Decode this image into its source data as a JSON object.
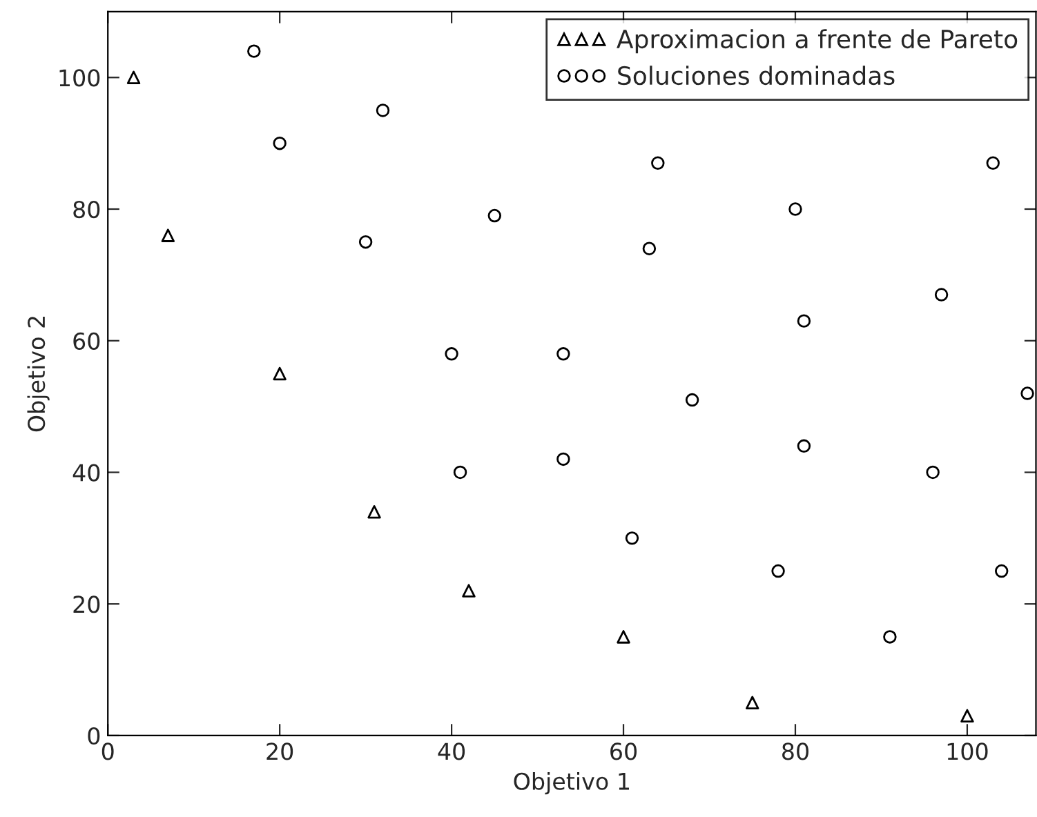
{
  "chart_data": {
    "type": "scatter",
    "xlabel": "Objetivo 1",
    "ylabel": "Objetivo 2",
    "xlim": [
      0,
      108
    ],
    "ylim": [
      0,
      110
    ],
    "xticks": [
      0,
      20,
      40,
      60,
      80,
      100
    ],
    "yticks": [
      0,
      20,
      40,
      60,
      80,
      100
    ],
    "grid": false,
    "legend": "top right",
    "series": [
      {
        "name": "Aproximacion a frente de Pareto",
        "color": "#000000",
        "marker": "triangle",
        "x": [
          3,
          7,
          20,
          31,
          42,
          60,
          75,
          100
        ],
        "values": [
          100,
          76,
          55,
          34,
          22,
          15,
          5,
          3
        ]
      },
      {
        "name": "Soluciones dominadas",
        "color": "#000000",
        "marker": "circle",
        "x": [
          17,
          20,
          32,
          30,
          45,
          40,
          53,
          64,
          63,
          80,
          81,
          68,
          53,
          41,
          81,
          61,
          78,
          97,
          103,
          107,
          96,
          104,
          91
        ],
        "values": [
          104,
          90,
          95,
          75,
          79,
          58,
          58,
          87,
          74,
          80,
          63,
          51,
          42,
          40,
          44,
          30,
          25,
          67,
          87,
          52,
          40,
          25,
          15
        ]
      }
    ]
  }
}
